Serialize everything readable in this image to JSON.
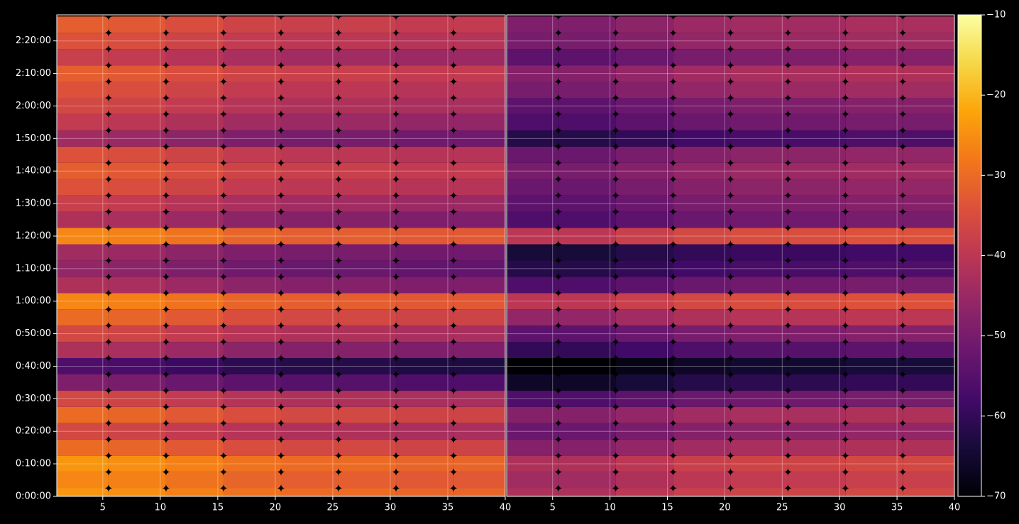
{
  "chart_data": {
    "type": "heatmap",
    "colormap": "inferno",
    "grid": true,
    "y": [
      0,
      5,
      10,
      15,
      20,
      25,
      30,
      35,
      40,
      45,
      50,
      55,
      60,
      65,
      70,
      75,
      80,
      85,
      90,
      95,
      100,
      105,
      110,
      115,
      120,
      125,
      130,
      135,
      140,
      145
    ],
    "ylim": [
      0,
      148
    ],
    "yticks": [
      {
        "value": 0,
        "label": "0:00:00"
      },
      {
        "value": 10,
        "label": "0:10:00"
      },
      {
        "value": 20,
        "label": "0:20:00"
      },
      {
        "value": 30,
        "label": "0:30:00"
      },
      {
        "value": 40,
        "label": "0:40:00"
      },
      {
        "value": 50,
        "label": "0:50:00"
      },
      {
        "value": 60,
        "label": "1:00:00"
      },
      {
        "value": 70,
        "label": "1:10:00"
      },
      {
        "value": 80,
        "label": "1:20:00"
      },
      {
        "value": 90,
        "label": "1:30:00"
      },
      {
        "value": 100,
        "label": "1:40:00"
      },
      {
        "value": 110,
        "label": "1:50:00"
      },
      {
        "value": 120,
        "label": "2:00:00"
      },
      {
        "value": 130,
        "label": "2:10:00"
      },
      {
        "value": 140,
        "label": "2:20:00"
      }
    ],
    "clim": [
      -70,
      -10
    ],
    "cticks": [
      {
        "value": -10,
        "label": "−10"
      },
      {
        "value": -20,
        "label": "−20"
      },
      {
        "value": -30,
        "label": "−30"
      },
      {
        "value": -40,
        "label": "−40"
      },
      {
        "value": -50,
        "label": "−50"
      },
      {
        "value": -60,
        "label": "−60"
      },
      {
        "value": -70,
        "label": "−70"
      }
    ],
    "panels": [
      {
        "x": [
          3,
          8,
          13,
          18,
          23,
          28,
          33,
          38
        ],
        "xlim": [
          1,
          40
        ],
        "xticks": [
          5,
          10,
          15,
          20,
          25,
          30,
          35,
          40
        ],
        "values": [
          [
            -24,
            -25,
            -27,
            -29,
            -30,
            -30,
            -31,
            -31
          ],
          [
            -26,
            -27,
            -29,
            -31,
            -32,
            -32,
            -33,
            -33
          ],
          [
            -24,
            -25,
            -27,
            -29,
            -30,
            -30,
            -31,
            -31
          ],
          [
            -30,
            -31,
            -33,
            -35,
            -36,
            -36,
            -37,
            -37
          ],
          [
            -36,
            -37,
            -39,
            -41,
            -42,
            -42,
            -43,
            -43
          ],
          [
            -30,
            -31,
            -33,
            -35,
            -36,
            -36,
            -37,
            -37
          ],
          [
            -36,
            -37,
            -39,
            -41,
            -42,
            -42,
            -43,
            -43
          ],
          [
            -49,
            -50,
            -52,
            -54,
            -55,
            -55,
            -56,
            -56
          ],
          [
            -56,
            -57,
            -59,
            -61,
            -62,
            -62,
            -63,
            -63
          ],
          [
            -42,
            -43,
            -45,
            -47,
            -48,
            -48,
            -49,
            -49
          ],
          [
            -36,
            -37,
            -39,
            -41,
            -42,
            -42,
            -43,
            -43
          ],
          [
            -30,
            -31,
            -33,
            -35,
            -36,
            -36,
            -37,
            -37
          ],
          [
            -26,
            -27,
            -29,
            -31,
            -32,
            -32,
            -33,
            -33
          ],
          [
            -42,
            -43,
            -45,
            -47,
            -48,
            -48,
            -49,
            -49
          ],
          [
            -46,
            -47,
            -49,
            -51,
            -52,
            -52,
            -53,
            -53
          ],
          [
            -44,
            -45,
            -47,
            -49,
            -50,
            -50,
            -51,
            -51
          ],
          [
            -26,
            -27,
            -29,
            -31,
            -32,
            -32,
            -33,
            -33
          ],
          [
            -42,
            -43,
            -45,
            -47,
            -48,
            -48,
            -49,
            -49
          ],
          [
            -38,
            -39,
            -41,
            -43,
            -44,
            -44,
            -45,
            -45
          ],
          [
            -34,
            -35,
            -37,
            -39,
            -40,
            -40,
            -41,
            -41
          ],
          [
            -32,
            -33,
            -35,
            -37,
            -38,
            -38,
            -39,
            -39
          ],
          [
            -34,
            -35,
            -37,
            -39,
            -40,
            -40,
            -41,
            -41
          ],
          [
            -44,
            -45,
            -47,
            -49,
            -50,
            -50,
            -51,
            -51
          ],
          [
            -39,
            -40,
            -42,
            -44,
            -45,
            -45,
            -46,
            -46
          ],
          [
            -36,
            -37,
            -39,
            -41,
            -42,
            -42,
            -43,
            -43
          ],
          [
            -34,
            -35,
            -37,
            -39,
            -40,
            -40,
            -41,
            -41
          ],
          [
            -32,
            -33,
            -35,
            -37,
            -38,
            -38,
            -39,
            -39
          ],
          [
            -38,
            -39,
            -41,
            -43,
            -44,
            -44,
            -45,
            -45
          ],
          [
            -34,
            -35,
            -37,
            -39,
            -40,
            -40,
            -41,
            -41
          ],
          [
            -32,
            -33,
            -35,
            -37,
            -38,
            -38,
            -39,
            -39
          ]
        ]
      },
      {
        "x": [
          3,
          8,
          13,
          18,
          23,
          28,
          33,
          38
        ],
        "xlim": [
          1,
          40
        ],
        "xticks": [
          5,
          10,
          15,
          20,
          25,
          30,
          35,
          40
        ],
        "values": [
          [
            -42,
            -42,
            -40,
            -38,
            -37,
            -37,
            -36,
            -36
          ],
          [
            -44,
            -44,
            -42,
            -40,
            -39,
            -39,
            -38,
            -38
          ],
          [
            -42,
            -42,
            -40,
            -38,
            -37,
            -37,
            -36,
            -36
          ],
          [
            -48,
            -48,
            -46,
            -44,
            -43,
            -43,
            -42,
            -42
          ],
          [
            -52,
            -52,
            -50,
            -48,
            -47,
            -47,
            -46,
            -46
          ],
          [
            -48,
            -48,
            -46,
            -44,
            -43,
            -43,
            -42,
            -42
          ],
          [
            -56,
            -56,
            -54,
            -52,
            -51,
            -51,
            -50,
            -50
          ],
          [
            -66,
            -66,
            -64,
            -62,
            -61,
            -61,
            -60,
            -60
          ],
          [
            -70,
            -70,
            -68,
            -66,
            -65,
            -65,
            -64,
            -64
          ],
          [
            -60,
            -60,
            -58,
            -56,
            -55,
            -55,
            -54,
            -54
          ],
          [
            -54,
            -54,
            -52,
            -50,
            -49,
            -49,
            -48,
            -48
          ],
          [
            -46,
            -46,
            -44,
            -42,
            -41,
            -41,
            -40,
            -40
          ],
          [
            -40,
            -40,
            -38,
            -36,
            -35,
            -35,
            -34,
            -34
          ],
          [
            -56,
            -56,
            -54,
            -52,
            -51,
            -51,
            -50,
            -50
          ],
          [
            -62,
            -62,
            -60,
            -58,
            -57,
            -57,
            -56,
            -56
          ],
          [
            -64,
            -64,
            -62,
            -60,
            -59,
            -59,
            -58,
            -58
          ],
          [
            -40,
            -40,
            -38,
            -36,
            -35,
            -35,
            -34,
            -34
          ],
          [
            -56,
            -56,
            -54,
            -52,
            -51,
            -51,
            -50,
            -50
          ],
          [
            -54,
            -54,
            -52,
            -50,
            -49,
            -49,
            -48,
            -48
          ],
          [
            -52,
            -52,
            -50,
            -48,
            -47,
            -47,
            -46,
            -46
          ],
          [
            -50,
            -50,
            -48,
            -46,
            -45,
            -45,
            -44,
            -44
          ],
          [
            -52,
            -52,
            -50,
            -48,
            -47,
            -47,
            -46,
            -46
          ],
          [
            -62,
            -62,
            -60,
            -58,
            -57,
            -57,
            -56,
            -56
          ],
          [
            -56,
            -56,
            -54,
            -52,
            -51,
            -51,
            -50,
            -50
          ],
          [
            -54,
            -54,
            -52,
            -50,
            -49,
            -49,
            -48,
            -48
          ],
          [
            -50,
            -50,
            -48,
            -46,
            -45,
            -45,
            -44,
            -44
          ],
          [
            -48,
            -48,
            -46,
            -44,
            -43,
            -43,
            -42,
            -42
          ],
          [
            -54,
            -54,
            -52,
            -50,
            -49,
            -49,
            -48,
            -48
          ],
          [
            -50,
            -50,
            -48,
            -46,
            -45,
            -45,
            -44,
            -44
          ],
          [
            -49,
            -49,
            -47,
            -45,
            -44,
            -44,
            -43,
            -43
          ]
        ]
      }
    ]
  }
}
